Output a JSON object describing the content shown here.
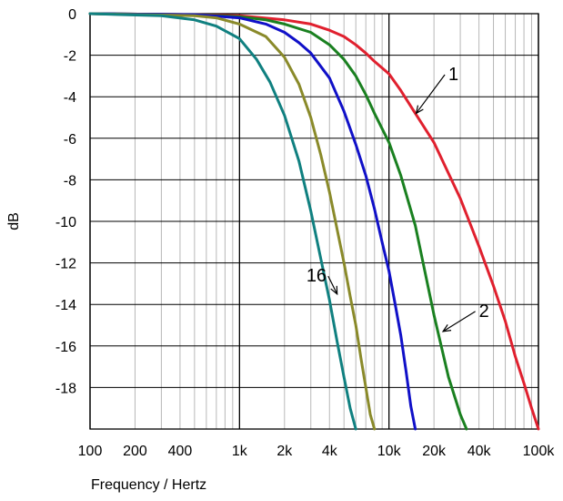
{
  "chart_data": {
    "type": "line",
    "xlabel": "Frequency / Hertz",
    "ylabel": "dB",
    "xscale": "log",
    "xlim": [
      100,
      100000
    ],
    "ylim": [
      -20,
      0
    ],
    "grid": true,
    "x_ticks": [
      {
        "value": 100,
        "label": "100"
      },
      {
        "value": 200,
        "label": "200"
      },
      {
        "value": 400,
        "label": "400"
      },
      {
        "value": 1000,
        "label": "1k"
      },
      {
        "value": 2000,
        "label": "2k"
      },
      {
        "value": 4000,
        "label": "4k"
      },
      {
        "value": 10000,
        "label": "10k"
      },
      {
        "value": 20000,
        "label": "20k"
      },
      {
        "value": 40000,
        "label": "40k"
      },
      {
        "value": 100000,
        "label": "100k"
      }
    ],
    "y_ticks": [
      {
        "value": 0,
        "label": "0"
      },
      {
        "value": -2,
        "label": "-2"
      },
      {
        "value": -4,
        "label": "-4"
      },
      {
        "value": -6,
        "label": "-6"
      },
      {
        "value": -8,
        "label": "-8"
      },
      {
        "value": -10,
        "label": "-10"
      },
      {
        "value": -12,
        "label": "-12"
      },
      {
        "value": -14,
        "label": "-14"
      },
      {
        "value": -16,
        "label": "-16"
      },
      {
        "value": -18,
        "label": "-18"
      }
    ],
    "series": [
      {
        "color": "#e0202e",
        "x": [
          100,
          500,
          1000,
          2000,
          3000,
          4000,
          5000,
          6000,
          7000,
          8000,
          10000,
          12000,
          15000,
          20000,
          30000,
          40000,
          50000,
          60000,
          70000,
          80000,
          90000,
          100000
        ],
        "y": [
          0,
          -0.05,
          -0.1,
          -0.3,
          -0.5,
          -0.8,
          -1.1,
          -1.5,
          -1.9,
          -2.3,
          -2.9,
          -3.7,
          -4.8,
          -6.2,
          -8.9,
          -11.2,
          -13.1,
          -14.8,
          -16.5,
          -17.8,
          -19.0,
          -20.0
        ]
      },
      {
        "color": "#1a8020",
        "x": [
          100,
          500,
          1000,
          1500,
          2000,
          3000,
          4000,
          5000,
          6000,
          7000,
          8000,
          10000,
          12000,
          15000,
          20000,
          25000,
          30000,
          33000
        ],
        "y": [
          0,
          -0.05,
          -0.15,
          -0.3,
          -0.5,
          -0.9,
          -1.5,
          -2.2,
          -3.0,
          -3.9,
          -4.8,
          -6.2,
          -7.8,
          -10.2,
          -14.5,
          -17.5,
          -19.3,
          -20.0
        ]
      },
      {
        "color": "#1010c8",
        "x": [
          100,
          500,
          1000,
          1500,
          2000,
          2500,
          3000,
          4000,
          5000,
          6000,
          7000,
          8000,
          9000,
          10000,
          11000,
          12000,
          13000,
          14000,
          15000
        ],
        "y": [
          0,
          -0.05,
          -0.2,
          -0.5,
          -0.9,
          -1.4,
          -1.9,
          -3.1,
          -4.7,
          -6.3,
          -7.8,
          -9.4,
          -11.0,
          -12.4,
          -14.0,
          -15.5,
          -17.2,
          -18.9,
          -20.0
        ]
      },
      {
        "color": "#8a8a2a",
        "x": [
          100,
          500,
          700,
          1000,
          1500,
          2000,
          2500,
          3000,
          3500,
          4000,
          4500,
          5000,
          5500,
          6000,
          6500,
          7000,
          7500,
          8000
        ],
        "y": [
          0,
          -0.1,
          -0.2,
          -0.5,
          -1.1,
          -2.1,
          -3.4,
          -5.0,
          -6.8,
          -8.6,
          -10.4,
          -12.0,
          -13.6,
          -15.0,
          -16.6,
          -18.0,
          -19.3,
          -20.0
        ]
      },
      {
        "color": "#108080",
        "x": [
          100,
          300,
          500,
          700,
          1000,
          1300,
          1600,
          2000,
          2500,
          3000,
          3500,
          4000,
          4500,
          5000,
          5500,
          6000
        ],
        "y": [
          0,
          -0.1,
          -0.3,
          -0.6,
          -1.2,
          -2.2,
          -3.3,
          -4.9,
          -7.1,
          -9.5,
          -11.8,
          -13.8,
          -15.8,
          -17.5,
          -19.0,
          -20.0
        ]
      }
    ],
    "annotations": [
      {
        "text": "1",
        "x": 25000,
        "y": -3.2,
        "arrow_to": [
          15200,
          -4.8
        ]
      },
      {
        "text": "2",
        "x": 40000,
        "y": -14.6,
        "arrow_to": [
          23000,
          -15.3
        ]
      },
      {
        "text": "16",
        "x": 2800,
        "y": -12.9,
        "arrow_to": [
          4500,
          -13.5
        ]
      }
    ]
  }
}
